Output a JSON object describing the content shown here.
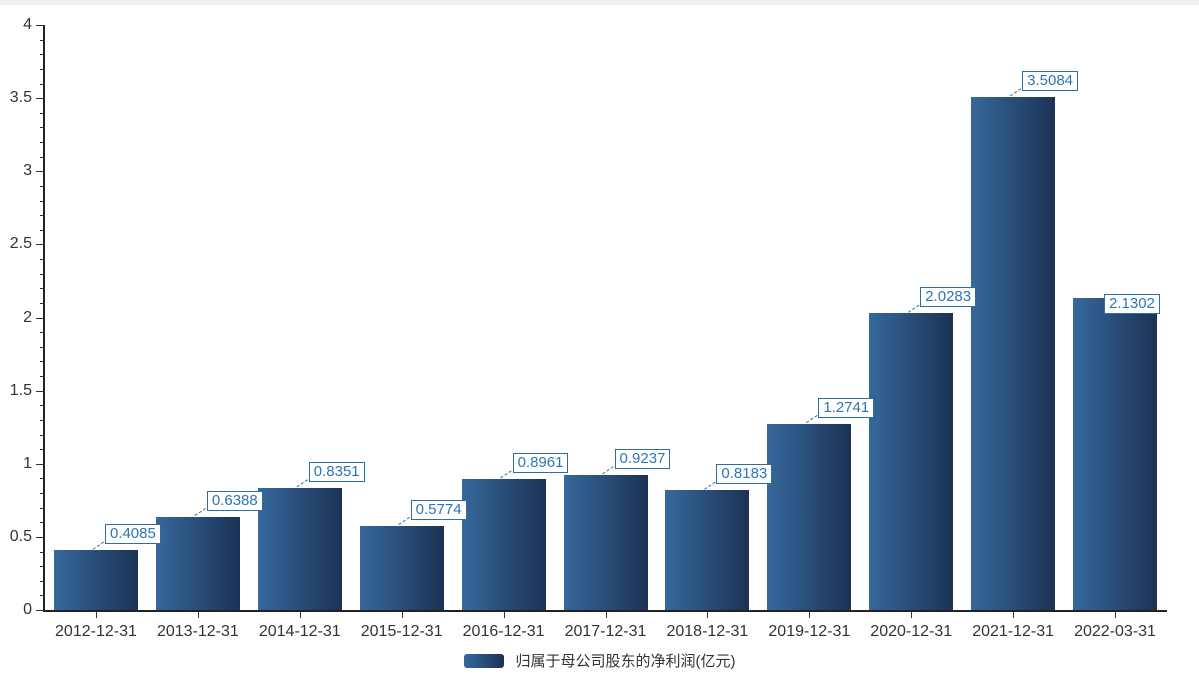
{
  "chart_data": {
    "type": "bar",
    "title": "",
    "categories": [
      "2012-12-31",
      "2013-12-31",
      "2014-12-31",
      "2015-12-31",
      "2016-12-31",
      "2017-12-31",
      "2018-12-31",
      "2019-12-31",
      "2020-12-31",
      "2021-12-31",
      "2022-03-31"
    ],
    "series": [
      {
        "name": "归属于母公司股东的净利润(亿元)",
        "values": [
          0.4085,
          0.6388,
          0.8351,
          0.5774,
          0.8961,
          0.9237,
          0.8183,
          1.2741,
          2.0283,
          3.5084,
          2.1302
        ]
      }
    ],
    "value_labels": [
      "0.4085",
      "0.6388",
      "0.8351",
      "0.5774",
      "0.8961",
      "0.9237",
      "0.8183",
      "1.2741",
      "2.0283",
      "3.5084",
      "2.1302"
    ],
    "xlabel": "",
    "ylabel": "",
    "ylim": [
      0,
      4
    ],
    "y_major_step": 0.5,
    "y_minor_step": 0.1,
    "y_tick_labels": [
      "0",
      "0.5",
      "1",
      "1.5",
      "2",
      "2.5",
      "3",
      "3.5",
      "4"
    ],
    "grid": false,
    "legend_position": "bottom-center"
  },
  "colors": {
    "bar_gradient_start": "#36689c",
    "bar_gradient_end": "#1c3254",
    "callout_border": "#2e6da4",
    "callout_text": "#2e75b6",
    "axis": "#222222",
    "tick_label": "#333333",
    "top_strip": "#f0f0f0"
  }
}
